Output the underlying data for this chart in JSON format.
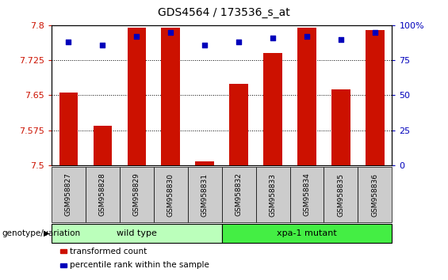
{
  "title": "GDS4564 / 173536_s_at",
  "samples": [
    "GSM958827",
    "GSM958828",
    "GSM958829",
    "GSM958830",
    "GSM958831",
    "GSM958832",
    "GSM958833",
    "GSM958834",
    "GSM958835",
    "GSM958836"
  ],
  "transformed_count": [
    7.655,
    7.585,
    7.795,
    7.795,
    7.508,
    7.675,
    7.74,
    7.795,
    7.662,
    7.79
  ],
  "percentile_rank": [
    88,
    86,
    92,
    95,
    86,
    88,
    91,
    92,
    90,
    95
  ],
  "ymin": 7.5,
  "ymax": 7.8,
  "yticks": [
    7.5,
    7.575,
    7.65,
    7.725,
    7.8
  ],
  "ytick_labels": [
    "7.5",
    "7.575",
    "7.65",
    "7.725",
    "7.8"
  ],
  "y2min": 0,
  "y2max": 100,
  "y2ticks": [
    0,
    25,
    50,
    75,
    100
  ],
  "y2tick_labels": [
    "0",
    "25",
    "50",
    "75",
    "100%"
  ],
  "bar_color": "#cc1100",
  "dot_color": "#0000bb",
  "grid_color": "#000000",
  "groups": [
    {
      "label": "wild type",
      "start": 0,
      "end": 4,
      "color": "#bbffbb"
    },
    {
      "label": "xpa-1 mutant",
      "start": 5,
      "end": 9,
      "color": "#44ee44"
    }
  ],
  "legend_items": [
    {
      "label": "transformed count",
      "color": "#cc1100"
    },
    {
      "label": "percentile rank within the sample",
      "color": "#0000bb"
    }
  ],
  "group_label": "genotype/variation",
  "tick_label_color_left": "#cc1100",
  "tick_label_color_right": "#0000bb",
  "bg_color": "#ffffff",
  "sample_box_color": "#cccccc"
}
